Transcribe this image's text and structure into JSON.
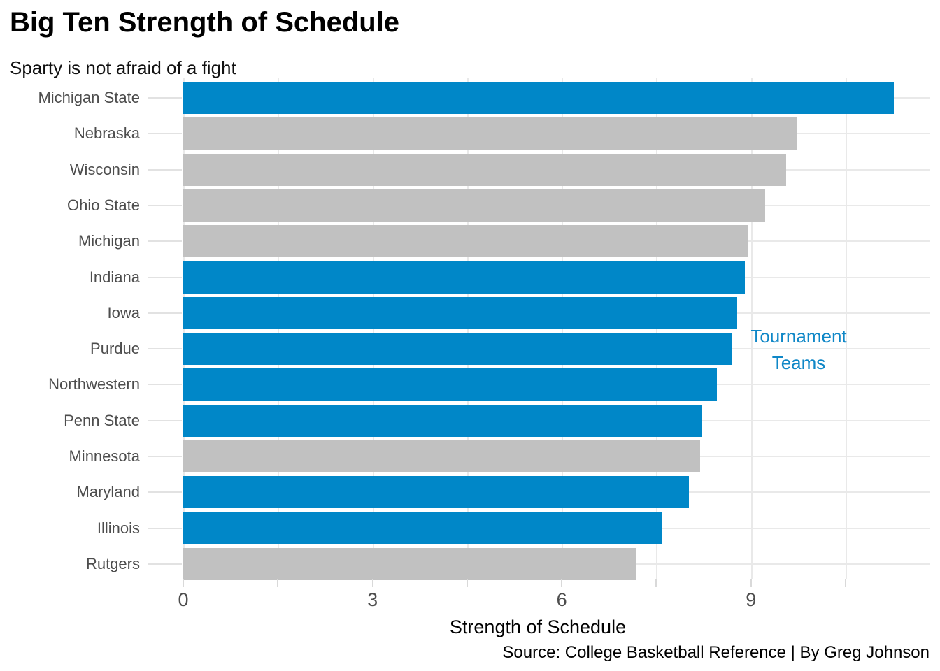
{
  "header": {
    "title": "Big Ten Strength of Schedule",
    "subtitle": "Sparty is not afraid of a fight"
  },
  "caption": "Source: College Basketball Reference | By Greg Johnson",
  "annotation": {
    "line1": "Tournament",
    "line2": "Teams"
  },
  "colors": {
    "tournament_blue": "#0087c8",
    "non_tournament_gray": "#c1c1c1",
    "annotation_blue": "#0f87c7",
    "gridline": "#e9e9e9",
    "axis_tick": "#d9d9d9",
    "axis_text": "#4d4d4d"
  },
  "chart_data": {
    "type": "bar",
    "orientation": "horizontal",
    "title": "Big Ten Strength of Schedule",
    "subtitle": "Sparty is not afraid of a fight",
    "xlabel": "Strength of Schedule",
    "ylabel": "",
    "xlim": [
      0,
      11.83
    ],
    "x_major_ticks": [
      0,
      3,
      6,
      9
    ],
    "x_minor_ticks": [
      1.5,
      4.5,
      7.5,
      10.5
    ],
    "grid": true,
    "legend_position": "none",
    "annotation_text": "Tournament Teams",
    "categories": [
      "Michigan State",
      "Nebraska",
      "Wisconsin",
      "Ohio State",
      "Michigan",
      "Indiana",
      "Iowa",
      "Purdue",
      "Northwestern",
      "Penn State",
      "Minnesota",
      "Maryland",
      "Illinois",
      "Rutgers"
    ],
    "values": [
      11.26,
      9.72,
      9.56,
      9.22,
      8.95,
      8.9,
      8.78,
      8.7,
      8.46,
      8.23,
      8.19,
      8.02,
      7.58,
      7.19
    ],
    "series": [
      {
        "name": "Strength of Schedule",
        "teams": [
          {
            "team": "Michigan State",
            "sos": 11.26,
            "tournament_team": true
          },
          {
            "team": "Nebraska",
            "sos": 9.72,
            "tournament_team": false
          },
          {
            "team": "Wisconsin",
            "sos": 9.56,
            "tournament_team": false
          },
          {
            "team": "Ohio State",
            "sos": 9.22,
            "tournament_team": false
          },
          {
            "team": "Michigan",
            "sos": 8.95,
            "tournament_team": false
          },
          {
            "team": "Indiana",
            "sos": 8.9,
            "tournament_team": true
          },
          {
            "team": "Iowa",
            "sos": 8.78,
            "tournament_team": true
          },
          {
            "team": "Purdue",
            "sos": 8.7,
            "tournament_team": true
          },
          {
            "team": "Northwestern",
            "sos": 8.46,
            "tournament_team": true
          },
          {
            "team": "Penn State",
            "sos": 8.23,
            "tournament_team": true
          },
          {
            "team": "Minnesota",
            "sos": 8.19,
            "tournament_team": false
          },
          {
            "team": "Maryland",
            "sos": 8.02,
            "tournament_team": true
          },
          {
            "team": "Illinois",
            "sos": 7.58,
            "tournament_team": true
          },
          {
            "team": "Rutgers",
            "sos": 7.19,
            "tournament_team": false
          }
        ]
      }
    ]
  }
}
